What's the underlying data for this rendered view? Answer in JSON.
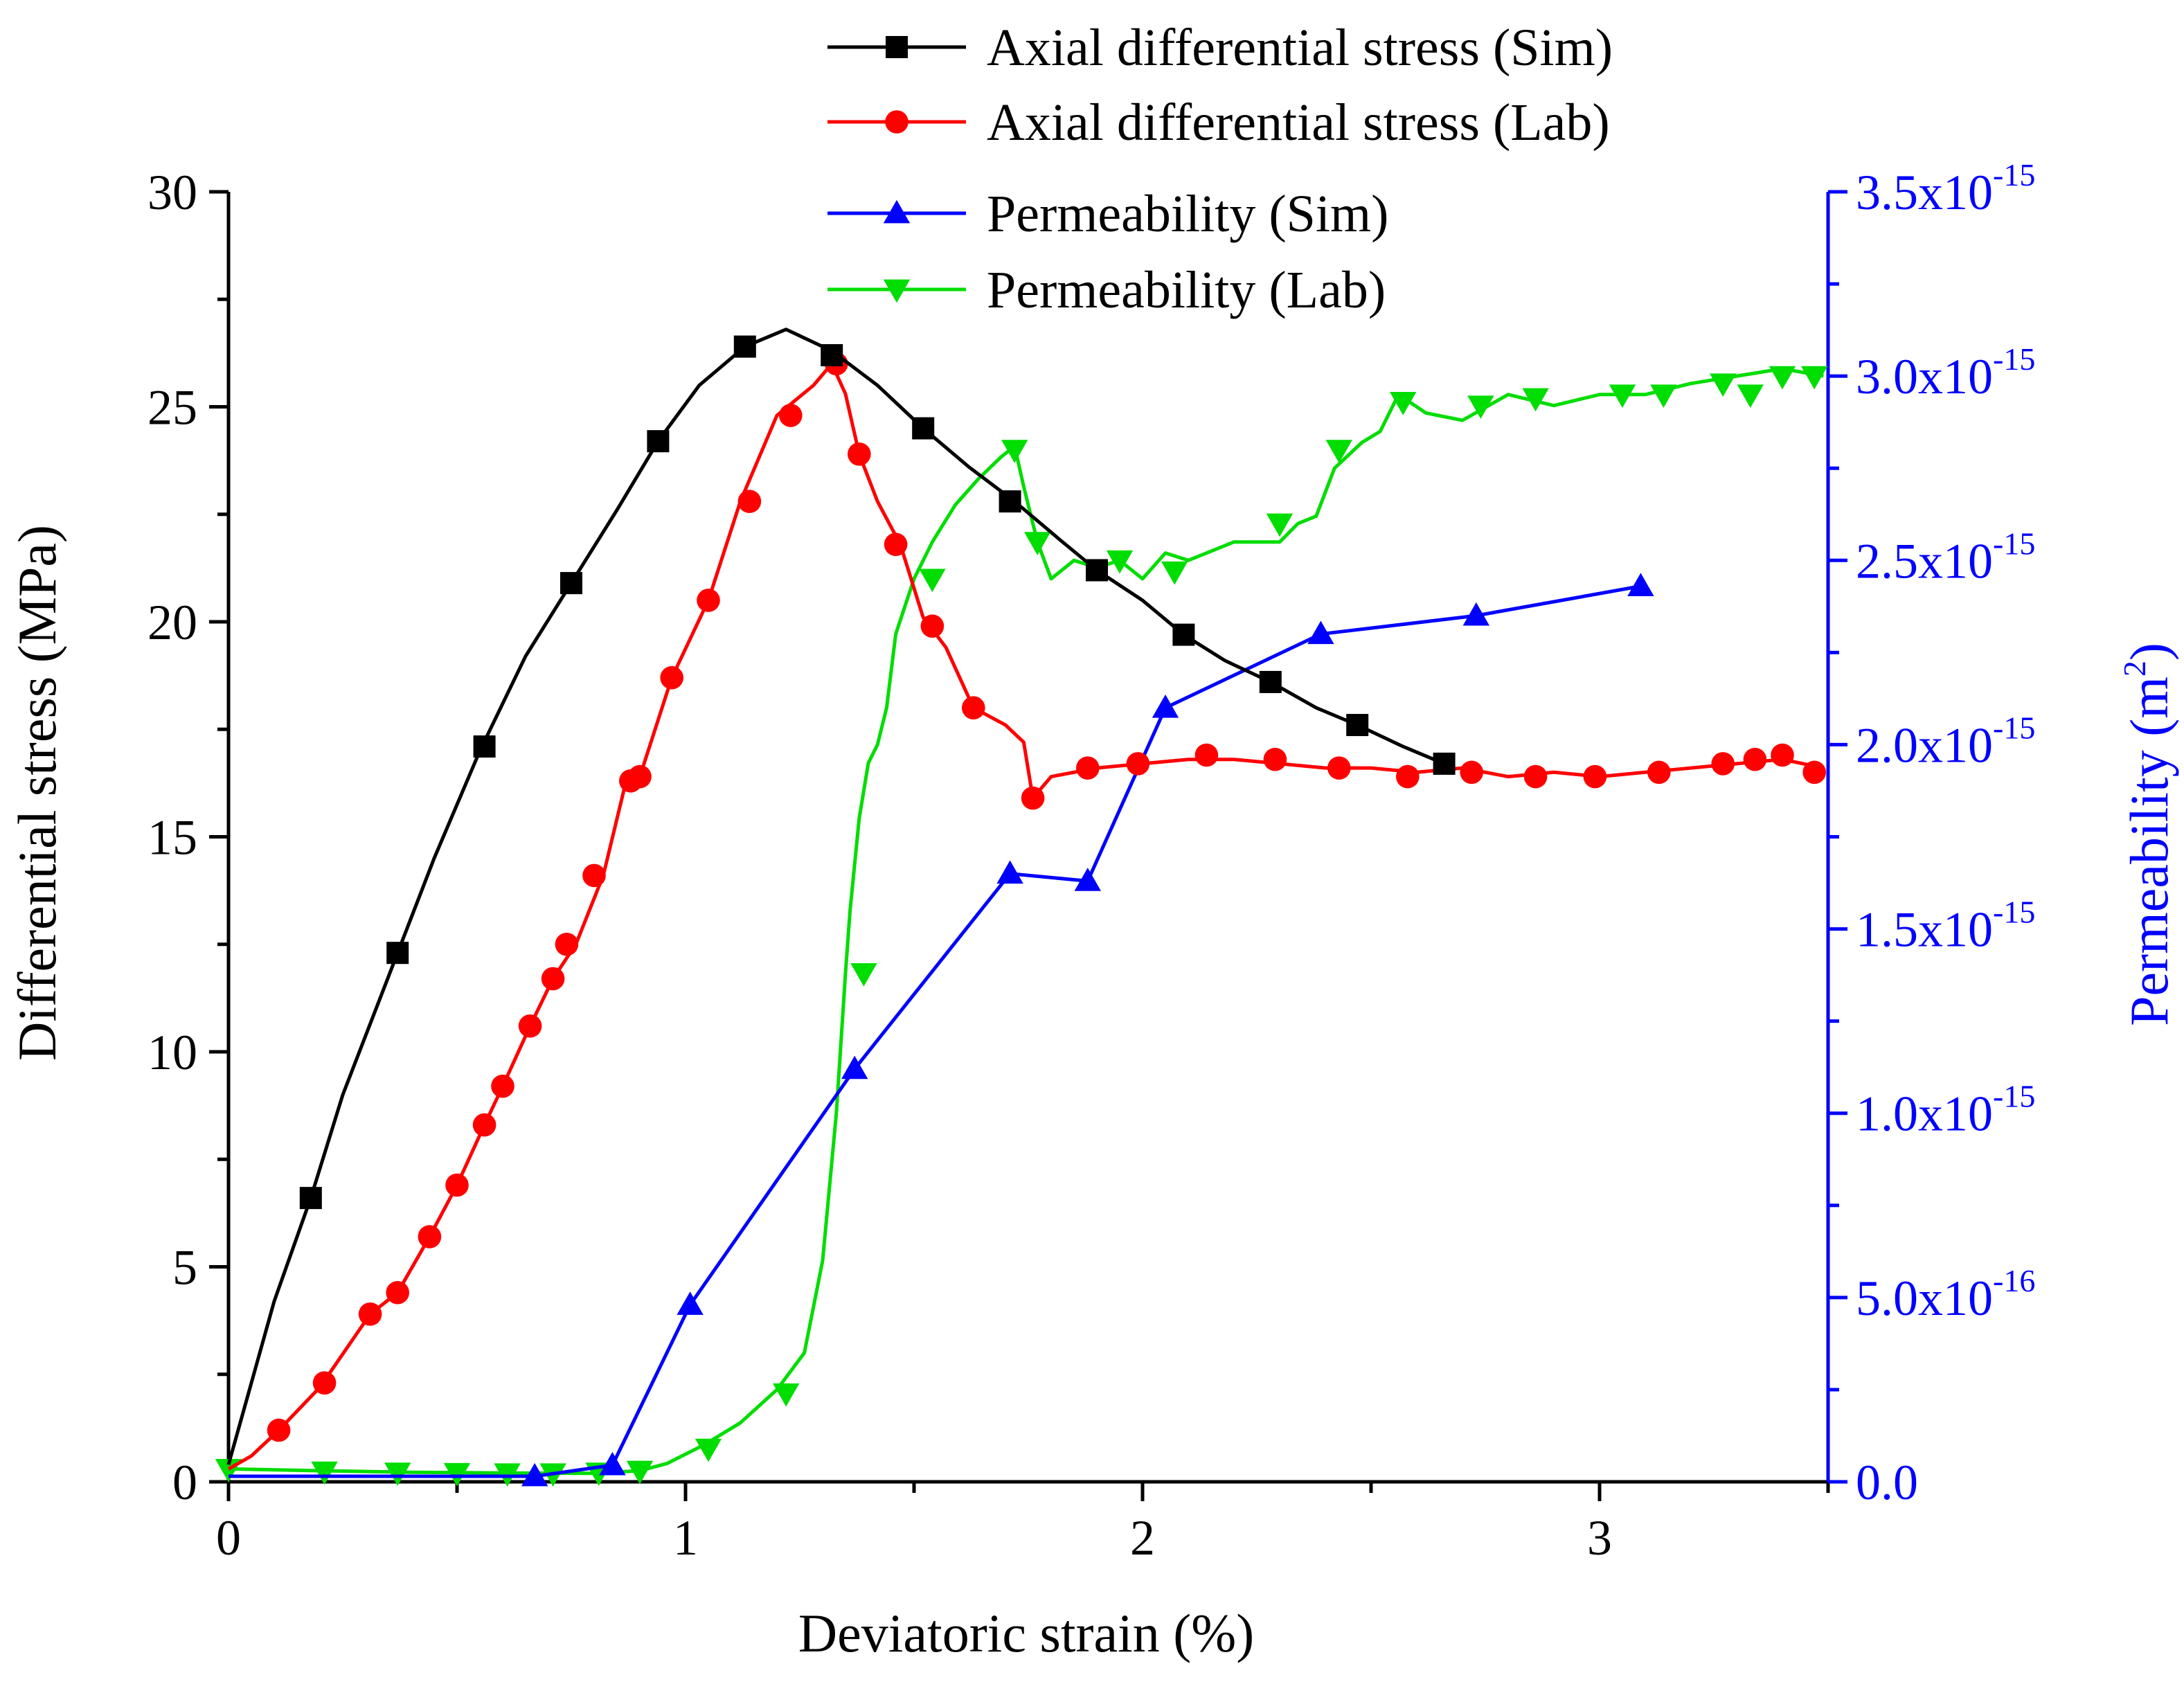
{
  "chart_data": {
    "type": "line",
    "xlabel": "Deviatoric strain (%)",
    "ylabel": "Differential stress (MPa)",
    "y2label": "Permeability (m",
    "y2label_sup": "2",
    "y2label_end": ")",
    "xlim": [
      0,
      3.5
    ],
    "ylim": [
      0,
      30
    ],
    "y2lim": [
      0,
      3.5e-15
    ],
    "x_ticks": [
      0,
      1,
      2,
      3
    ],
    "x_tick_labels": [
      "0",
      "1",
      "2",
      "3"
    ],
    "y_ticks": [
      0,
      5,
      10,
      15,
      20,
      25,
      30
    ],
    "y_tick_labels": [
      "0",
      "5",
      "10",
      "15",
      "20",
      "25",
      "30"
    ],
    "y2_ticks": [
      0,
      5e-16,
      1e-15,
      1.5e-15,
      2e-15,
      2.5e-15,
      3e-15,
      3.5e-15
    ],
    "y2_tick_labels": [
      {
        "base": "0.0",
        "exp": ""
      },
      {
        "base": "5.0x10",
        "exp": "-16"
      },
      {
        "base": "1.0x10",
        "exp": "-15"
      },
      {
        "base": "1.5x10",
        "exp": "-15"
      },
      {
        "base": "2.0x10",
        "exp": "-15"
      },
      {
        "base": "2.5x10",
        "exp": "-15"
      },
      {
        "base": "3.0x10",
        "exp": "-15"
      },
      {
        "base": "3.5x10",
        "exp": "-15"
      }
    ],
    "legend_position": "top-center",
    "series": [
      {
        "name": "Axial differential stress (Sim)",
        "axis": "left",
        "color": "#000000",
        "marker": "square",
        "line_x": [
          0,
          0.1,
          0.18,
          0.25,
          0.37,
          0.45,
          0.55,
          0.65,
          0.75,
          0.85,
          0.94,
          1.03,
          1.13,
          1.22,
          1.32,
          1.42,
          1.52,
          1.62,
          1.72,
          1.82,
          1.9,
          2.0,
          2.09,
          2.18,
          2.28,
          2.38,
          2.47,
          2.57,
          2.66
        ],
        "line_y": [
          0.4,
          4.2,
          6.6,
          9.0,
          12.3,
          14.5,
          17.0,
          19.2,
          20.9,
          22.6,
          24.2,
          25.5,
          26.4,
          26.8,
          26.3,
          25.5,
          24.5,
          23.6,
          22.8,
          21.9,
          21.2,
          20.5,
          19.7,
          19.1,
          18.6,
          18.0,
          17.6,
          17.1,
          16.7
        ],
        "marker_x": [
          0.18,
          0.37,
          0.56,
          0.75,
          0.94,
          1.13,
          1.32,
          1.52,
          1.71,
          1.9,
          2.09,
          2.28,
          2.47,
          2.66
        ],
        "marker_y": [
          6.6,
          12.3,
          17.1,
          20.9,
          24.2,
          26.4,
          26.2,
          24.5,
          22.8,
          21.2,
          19.7,
          18.6,
          17.6,
          16.7
        ]
      },
      {
        "name": "Axial differential stress (Lab)",
        "axis": "left",
        "color": "#ff0000",
        "marker": "circle",
        "line_x": [
          0,
          0.05,
          0.11,
          0.2,
          0.31,
          0.37,
          0.44,
          0.5,
          0.56,
          0.6,
          0.66,
          0.71,
          0.76,
          0.82,
          0.87,
          0.9,
          0.97,
          1.05,
          1.12,
          1.2,
          1.28,
          1.32,
          1.35,
          1.38,
          1.42,
          1.47,
          1.52,
          1.57,
          1.63,
          1.7,
          1.74,
          1.76,
          1.8,
          1.9,
          2.0,
          2.1,
          2.2,
          2.3,
          2.4,
          2.5,
          2.6,
          2.7,
          2.8,
          2.9,
          3.0,
          3.1,
          3.2,
          3.3,
          3.4,
          3.49
        ],
        "line_y": [
          0.3,
          0.6,
          1.2,
          2.2,
          3.9,
          4.4,
          5.7,
          6.9,
          8.3,
          9.2,
          10.6,
          11.7,
          12.5,
          14.1,
          16.3,
          16.4,
          18.7,
          20.5,
          22.8,
          24.8,
          25.5,
          26.0,
          25.3,
          23.9,
          22.8,
          21.8,
          20.1,
          19.4,
          18.0,
          17.6,
          17.2,
          15.9,
          16.4,
          16.6,
          16.7,
          16.8,
          16.8,
          16.7,
          16.6,
          16.6,
          16.5,
          16.6,
          16.4,
          16.5,
          16.4,
          16.5,
          16.6,
          16.7,
          16.8,
          16.6
        ],
        "marker_x": [
          0.11,
          0.21,
          0.31,
          0.37,
          0.44,
          0.5,
          0.56,
          0.6,
          0.66,
          0.71,
          0.74,
          0.8,
          0.88,
          0.9,
          0.97,
          1.05,
          1.14,
          1.23,
          1.33,
          1.38,
          1.46,
          1.54,
          1.63,
          1.76,
          1.88,
          1.99,
          2.14,
          2.29,
          2.43,
          2.58,
          2.72,
          2.86,
          2.99,
          3.13,
          3.27,
          3.34,
          3.4,
          3.47
        ],
        "marker_y": [
          1.2,
          2.3,
          3.9,
          4.4,
          5.7,
          6.9,
          8.3,
          9.2,
          10.6,
          11.7,
          12.5,
          14.1,
          16.3,
          16.4,
          18.7,
          20.5,
          22.8,
          24.8,
          26.0,
          23.9,
          21.8,
          19.9,
          18.0,
          15.9,
          16.6,
          16.7,
          16.9,
          16.8,
          16.6,
          16.4,
          16.5,
          16.4,
          16.4,
          16.5,
          16.7,
          16.8,
          16.9,
          16.5
        ]
      },
      {
        "name": "Permeability (Sim)",
        "axis": "right",
        "color": "#0000ff",
        "marker": "triangle-up",
        "line_x": [
          0,
          0.67,
          0.84,
          1.01,
          1.37,
          1.71,
          1.88,
          2.05,
          2.39,
          2.73,
          3.09
        ],
        "line_y": [
          1.5e-17,
          1.5e-17,
          4.5e-17,
          4.8e-16,
          1.12e-15,
          1.65e-15,
          1.63e-15,
          2.1e-15,
          2.3e-15,
          2.35e-15,
          2.43e-15
        ],
        "marker_x": [
          0.67,
          0.84,
          1.01,
          1.37,
          1.71,
          1.88,
          2.05,
          2.39,
          2.73,
          3.09
        ],
        "marker_y": [
          1.5e-17,
          4.5e-17,
          4.8e-16,
          1.12e-15,
          1.65e-15,
          1.63e-15,
          2.1e-15,
          2.3e-15,
          2.35e-15,
          2.43e-15
        ]
      },
      {
        "name": "Permeability (Lab)",
        "axis": "right",
        "color": "#00dd00",
        "marker": "triangle-down",
        "line_x": [
          0,
          0.2,
          0.4,
          0.6,
          0.8,
          0.9,
          0.96,
          1.04,
          1.12,
          1.2,
          1.26,
          1.3,
          1.33,
          1.35,
          1.36,
          1.38,
          1.4,
          1.42,
          1.44,
          1.46,
          1.5,
          1.54,
          1.59,
          1.64,
          1.69,
          1.72,
          1.74,
          1.77,
          1.8,
          1.85,
          1.9,
          1.95,
          2.0,
          2.05,
          2.1,
          2.2,
          2.3,
          2.34,
          2.38,
          2.42,
          2.48,
          2.52,
          2.56,
          2.62,
          2.7,
          2.8,
          2.9,
          3.0,
          3.1,
          3.2,
          3.3,
          3.4,
          3.49
        ],
        "line_y": [
          3.5e-17,
          3e-17,
          2.6e-17,
          2.4e-17,
          2.3e-17,
          3e-17,
          5e-17,
          1e-16,
          1.6e-16,
          2.5e-16,
          3.5e-16,
          6e-16,
          1e-15,
          1.38e-15,
          1.55e-15,
          1.8e-15,
          1.95e-15,
          2e-15,
          2.1e-15,
          2.3e-15,
          2.45e-15,
          2.55e-15,
          2.65e-15,
          2.72e-15,
          2.78e-15,
          2.81e-15,
          2.7e-15,
          2.55e-15,
          2.45e-15,
          2.5e-15,
          2.48e-15,
          2.5e-15,
          2.45e-15,
          2.52e-15,
          2.5e-15,
          2.55e-15,
          2.55e-15,
          2.6e-15,
          2.62e-15,
          2.75e-15,
          2.82e-15,
          2.85e-15,
          2.95e-15,
          2.9e-15,
          2.88e-15,
          2.95e-15,
          2.92e-15,
          2.95e-15,
          2.95e-15,
          2.98e-15,
          3e-15,
          3.02e-15,
          3e-15
        ],
        "marker_x": [
          0,
          0.21,
          0.37,
          0.5,
          0.61,
          0.71,
          0.81,
          0.9,
          1.05,
          1.22,
          1.39,
          1.54,
          1.72,
          1.77,
          1.95,
          2.07,
          2.3,
          2.43,
          2.57,
          2.74,
          2.86,
          3.05,
          3.14,
          3.27,
          3.33,
          3.4,
          3.47
        ],
        "marker_y": [
          3.5e-17,
          2.8e-17,
          2.5e-17,
          2.4e-17,
          2.3e-17,
          2.3e-17,
          2.5e-17,
          3e-17,
          9e-17,
          2.4e-16,
          1.38e-15,
          2.45e-15,
          2.8e-15,
          2.55e-15,
          2.5e-15,
          2.47e-15,
          2.6e-15,
          2.8e-15,
          2.93e-15,
          2.92e-15,
          2.94e-15,
          2.95e-15,
          2.95e-15,
          2.98e-15,
          2.95e-15,
          3e-15,
          3e-15
        ]
      }
    ]
  }
}
